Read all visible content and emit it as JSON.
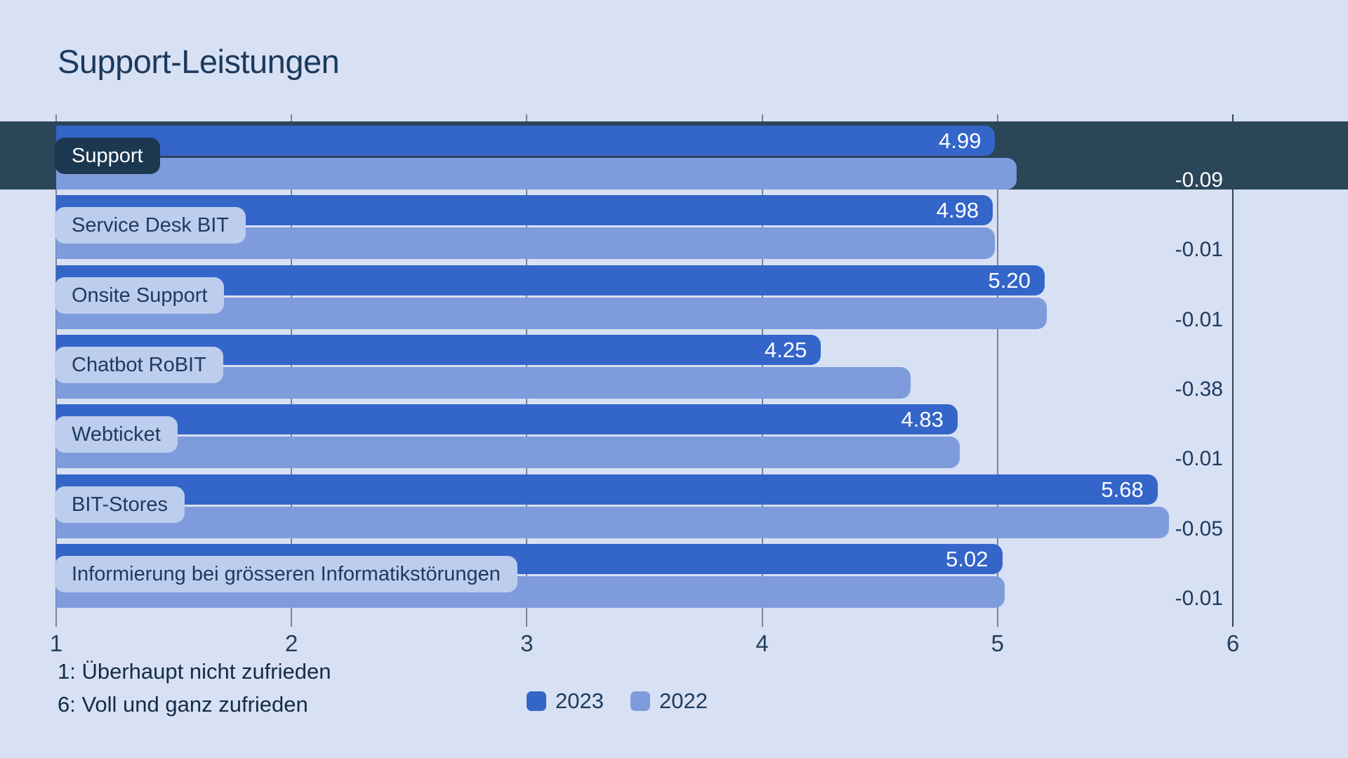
{
  "title": "Support-Leistungen",
  "chart_data": {
    "type": "bar",
    "orientation": "horizontal",
    "title": "Support-Leistungen",
    "xlim": [
      1,
      6
    ],
    "x_ticks": [
      "1",
      "2",
      "3",
      "4",
      "5",
      "6"
    ],
    "grid": true,
    "legend_position": "bottom",
    "categories": [
      "Support",
      "Service Desk BIT",
      "Onsite Support",
      "Chatbot RoBIT",
      "Webticket",
      "BIT-Stores",
      "Informierung bei grösseren Informatikstörungen"
    ],
    "highlight_index": 0,
    "series": [
      {
        "name": "2023",
        "color": "#3465c9",
        "values": [
          4.99,
          4.98,
          5.2,
          4.25,
          4.83,
          5.68,
          5.02
        ],
        "value_labels": [
          "4.99",
          "4.98",
          "5.20",
          "4.25",
          "4.83",
          "5.68",
          "5.02"
        ]
      },
      {
        "name": "2022",
        "color": "#7e9bdc",
        "values": [
          5.08,
          4.99,
          5.21,
          4.63,
          4.84,
          5.73,
          5.03
        ]
      }
    ],
    "diff_labels": [
      "-0.09",
      "-0.01",
      "-0.01",
      "-0.38",
      "-0.01",
      "-0.05",
      "-0.01"
    ],
    "legend": {
      "entries": [
        {
          "label": "2023",
          "color": "#3465c9"
        },
        {
          "label": "2022",
          "color": "#7e9bdc"
        }
      ]
    }
  },
  "scale_notes": [
    "1: Überhaupt nicht zufrieden",
    "6: Voll und ganz zufrieden"
  ],
  "colors": {
    "background": "#d8e0f3",
    "highlight_band": "#2b4559",
    "category_pill": "#bccdee",
    "category_pill_highlighted": "#1c3850",
    "bar_2023": "#3465c9",
    "bar_2022": "#7e9bdc",
    "gridline": "#75859b",
    "axis_line": "#2b4559",
    "text": "#1e3a5f"
  }
}
